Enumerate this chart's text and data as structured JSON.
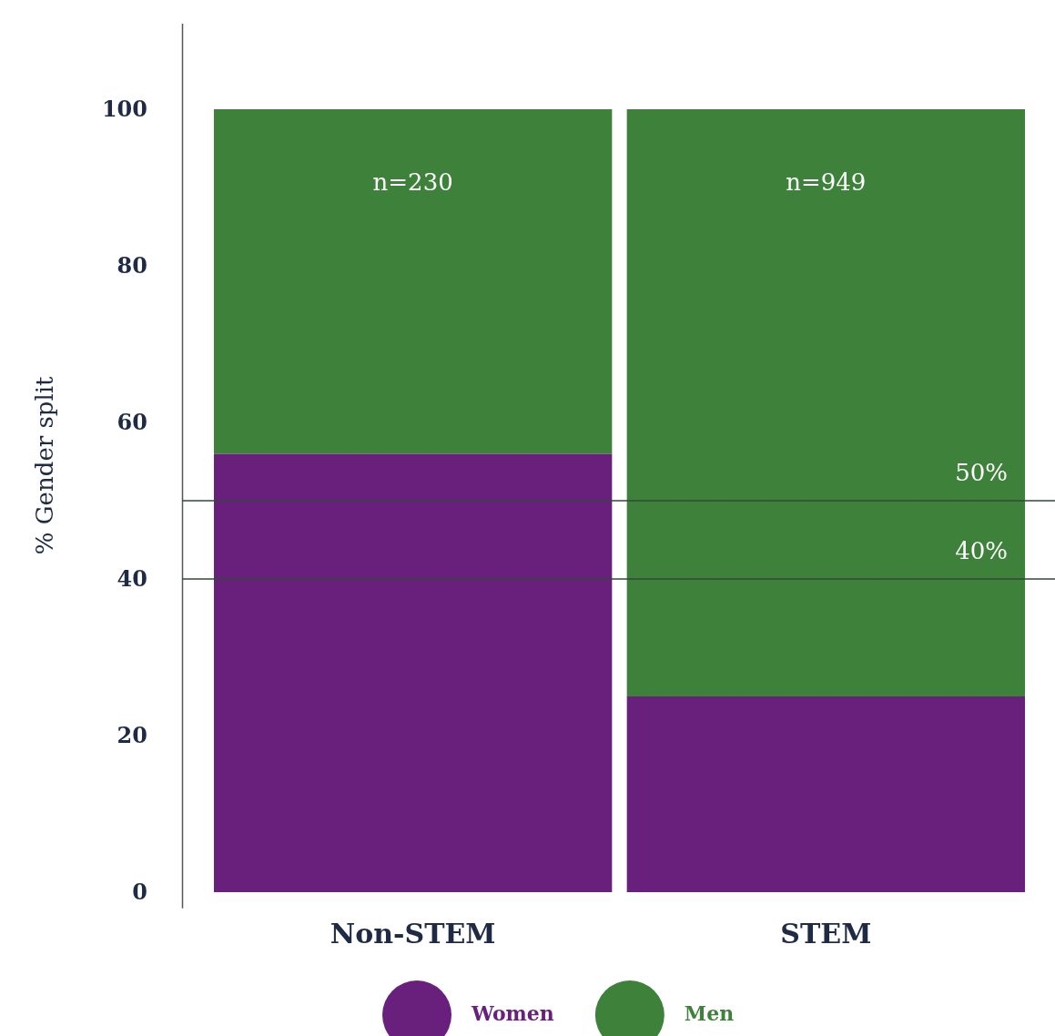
{
  "chart_data": {
    "type": "bar",
    "stacked": true,
    "ylabel": "% Gender split",
    "categories": [
      "Non-STEM",
      "STEM"
    ],
    "series": [
      {
        "name": "Women",
        "color": "#68207c",
        "values": [
          56,
          25
        ]
      },
      {
        "name": "Men",
        "color": "#3d813a",
        "values": [
          44,
          75
        ]
      }
    ],
    "ylim": [
      -2,
      111
    ],
    "yticks": [
      0,
      20,
      40,
      60,
      80,
      100
    ],
    "grid": false,
    "legend": "bottom",
    "ref_lines": [
      {
        "axis": "y",
        "value": 50,
        "label": "50%",
        "color": "#2f4a3a"
      },
      {
        "axis": "y",
        "value": 40,
        "label": "40%",
        "color": "#2f4a3a"
      }
    ],
    "annotations": [
      "n=230",
      "n=949"
    ]
  }
}
